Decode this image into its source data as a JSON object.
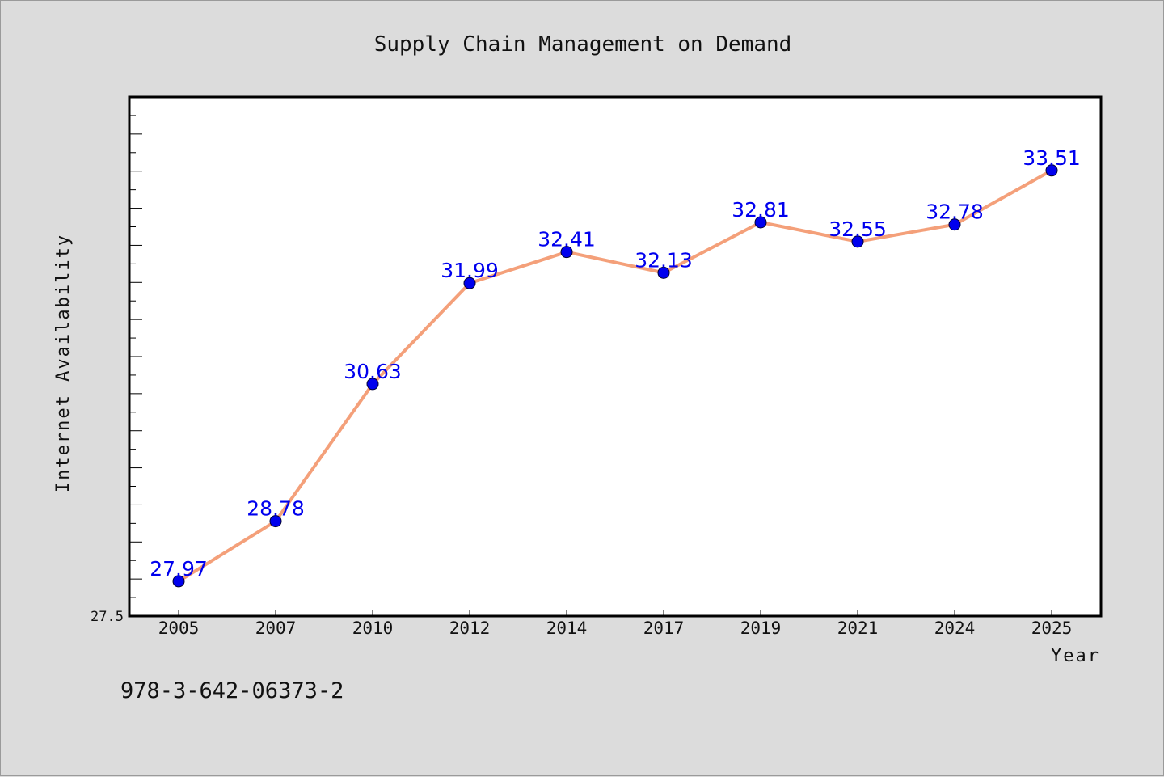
{
  "page": {
    "background": "#dcdcdc",
    "isbn": "978-3-642-06373-2"
  },
  "chart_data": {
    "type": "line",
    "title": "Supply Chain Management on Demand",
    "xlabel": "Year",
    "ylabel": "Internet Availability",
    "categories": [
      "2005",
      "2007",
      "2010",
      "2012",
      "2014",
      "2017",
      "2019",
      "2021",
      "2024",
      "2025"
    ],
    "series": [
      {
        "values": [
          27.97,
          28.78,
          30.63,
          31.99,
          32.41,
          32.13,
          32.81,
          32.55,
          32.78,
          33.51
        ],
        "line_color": "#f4a07a",
        "marker_color": "#0000ee"
      }
    ],
    "data_labels": [
      "27.97",
      "28.78",
      "30.63",
      "31.99",
      "32.41",
      "32.13",
      "32.81",
      "32.55",
      "32.78",
      "33.51"
    ],
    "ylim": [
      27.5,
      34.5
    ],
    "yticks_labeled": [
      "27.5"
    ],
    "grid": false,
    "legend": "none",
    "plot_background": "#ffffff"
  }
}
